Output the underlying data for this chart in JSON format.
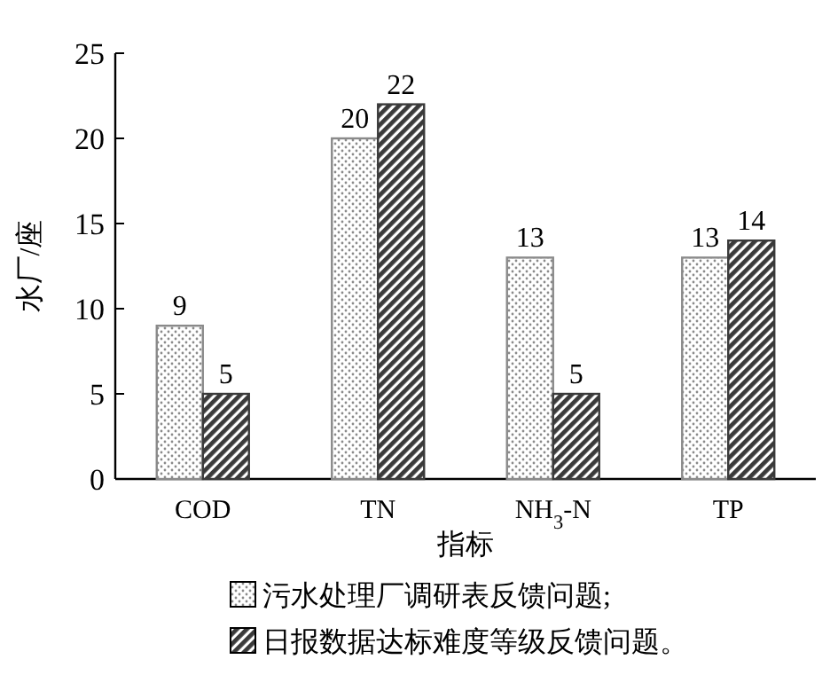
{
  "chart_data": {
    "type": "bar",
    "xlabel": "指标",
    "ylabel": "水厂/座",
    "categories": [
      "COD",
      "TN",
      "NH$_{3}$-N",
      "TP"
    ],
    "series": [
      {
        "name": "污水处理厂调研表反馈问题;",
        "color": "#8a8a8a",
        "values": [
          9,
          20,
          13,
          13
        ]
      },
      {
        "name": "日报数据达标难度等级反馈问题。",
        "color": "#3a3a3a",
        "values": [
          5,
          22,
          5,
          14
        ]
      }
    ],
    "ylim": [
      0,
      25
    ],
    "yticks": [
      0,
      5,
      10,
      15,
      20,
      25
    ],
    "data_labels": true,
    "legend": "bottom",
    "grid": false
  }
}
